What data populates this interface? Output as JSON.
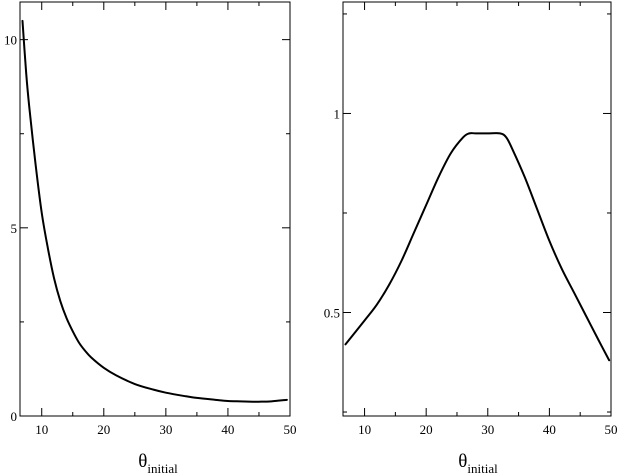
{
  "chart_data": [
    {
      "type": "line",
      "title": "",
      "xlabel": "θ",
      "xlabel_subscript": "initial",
      "ylabel": "",
      "xlim": [
        6.5,
        50
      ],
      "ylim": [
        0,
        11
      ],
      "x_ticks": [
        10,
        20,
        30,
        40,
        50
      ],
      "y_ticks": [
        0,
        5,
        10
      ],
      "grid": false,
      "series": [
        {
          "x": [
            6.9,
            7.5,
            8,
            9,
            10,
            11,
            12,
            13,
            14,
            15,
            16,
            17,
            18,
            20,
            22,
            25,
            28,
            30,
            33,
            35,
            38,
            40,
            42,
            44,
            45,
            47,
            49.5
          ],
          "y": [
            10.5,
            9.1,
            8.2,
            6.7,
            5.4,
            4.45,
            3.65,
            3.05,
            2.6,
            2.25,
            1.95,
            1.73,
            1.55,
            1.28,
            1.08,
            0.85,
            0.7,
            0.62,
            0.53,
            0.48,
            0.43,
            0.4,
            0.39,
            0.38,
            0.38,
            0.39,
            0.43
          ],
          "color": "#000000"
        }
      ]
    },
    {
      "type": "line",
      "title": "",
      "xlabel": "θ",
      "xlabel_subscript": "initial",
      "ylabel": "",
      "xlim": [
        6.5,
        50
      ],
      "ylim": [
        0.24,
        1.28
      ],
      "x_ticks": [
        10,
        20,
        30,
        40,
        50
      ],
      "y_ticks": [
        0.5,
        1
      ],
      "grid": false,
      "series": [
        {
          "x": [
            6.9,
            10,
            12,
            14,
            16,
            18,
            20,
            22,
            24,
            26,
            27,
            28,
            30,
            32,
            33,
            34,
            36,
            38,
            40,
            42,
            44,
            46,
            48,
            49.7
          ],
          "y": [
            0.42,
            0.48,
            0.52,
            0.57,
            0.63,
            0.7,
            0.77,
            0.84,
            0.9,
            0.94,
            0.95,
            0.95,
            0.95,
            0.95,
            0.94,
            0.91,
            0.84,
            0.76,
            0.68,
            0.61,
            0.55,
            0.49,
            0.43,
            0.38
          ],
          "color": "#000000"
        }
      ]
    }
  ]
}
